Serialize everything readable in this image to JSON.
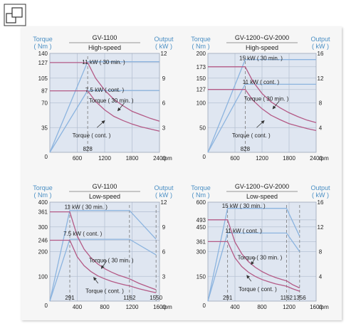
{
  "chart_data": [
    {
      "type": "line",
      "title": "GV-1100",
      "subtitle": "High-speed",
      "ylabel_left": [
        "Torque",
        "( Nm )"
      ],
      "ylabel_right": [
        "Output",
        "( kW )"
      ],
      "xunit": "rpm",
      "xlim": [
        0,
        2400
      ],
      "ylim_left": [
        0,
        140
      ],
      "ylim_right": [
        0,
        12
      ],
      "x_ticks": [
        0,
        600,
        1200,
        1800,
        2400
      ],
      "left_ticks": [
        140,
        127,
        105,
        87,
        70,
        35
      ],
      "right_ticks": [
        12,
        9,
        6,
        3
      ],
      "vlines": [
        828
      ],
      "vline_labels": [
        "828"
      ],
      "series": [
        {
          "name": "11 kW ( 30 min. )",
          "axis": "right",
          "x": [
            0,
            828,
            2400
          ],
          "y": [
            0,
            11,
            11
          ]
        },
        {
          "name": "7.5 kW ( cont. )",
          "axis": "right",
          "x": [
            0,
            828,
            2400
          ],
          "y": [
            0,
            7.5,
            7.5
          ]
        },
        {
          "name": "Torque ( 30 min. )",
          "axis": "left",
          "x": [
            0,
            828,
            1000,
            1200,
            1400,
            1600,
            1800,
            2000,
            2200,
            2400
          ],
          "y": [
            127,
            127,
            105,
            88,
            75,
            66,
            58,
            53,
            48,
            44
          ]
        },
        {
          "name": "Torque ( cont. )",
          "axis": "left",
          "x": [
            0,
            828,
            1000,
            1200,
            1400,
            1600,
            1800,
            2000,
            2200,
            2400
          ],
          "y": [
            87,
            87,
            72,
            60,
            51,
            45,
            40,
            36,
            33,
            30
          ]
        }
      ],
      "annotations": [
        "11 kW ( 30 min. )",
        "7.5 kW ( cont. )",
        "Torque ( 30 min. )",
        "Torque ( cont. )"
      ]
    },
    {
      "type": "line",
      "title": "GV-1200~GV-2000",
      "subtitle": "High-speed",
      "ylabel_left": [
        "Torque",
        "( Nm )"
      ],
      "ylabel_right": [
        "Output",
        "( kW )"
      ],
      "xunit": "rpm",
      "xlim": [
        0,
        2400
      ],
      "ylim_left": [
        0,
        200
      ],
      "ylim_right": [
        0,
        16
      ],
      "x_ticks": [
        0,
        600,
        1200,
        1800,
        2400
      ],
      "left_ticks": [
        200,
        173,
        150,
        127,
        100,
        50
      ],
      "right_ticks": [
        16,
        12,
        8,
        4
      ],
      "vlines": [
        828
      ],
      "vline_labels": [
        "828"
      ],
      "series": [
        {
          "name": "15 kW ( 30 min. )",
          "axis": "right",
          "x": [
            0,
            828,
            2400
          ],
          "y": [
            0,
            15,
            15
          ]
        },
        {
          "name": "11 kW ( cont. )",
          "axis": "right",
          "x": [
            0,
            828,
            2400
          ],
          "y": [
            0,
            11,
            11
          ]
        },
        {
          "name": "Torque ( 30 min. )",
          "axis": "left",
          "x": [
            0,
            828,
            1000,
            1200,
            1400,
            1600,
            1800,
            2000,
            2200,
            2400
          ],
          "y": [
            173,
            173,
            143,
            119,
            102,
            90,
            80,
            72,
            65,
            60
          ]
        },
        {
          "name": "Torque ( cont. )",
          "axis": "left",
          "x": [
            0,
            828,
            1000,
            1200,
            1400,
            1600,
            1800,
            2000,
            2200,
            2400
          ],
          "y": [
            127,
            127,
            105,
            88,
            75,
            66,
            58,
            53,
            48,
            44
          ]
        }
      ],
      "annotations": [
        "15 kW ( 30 min. )",
        "11 kW ( cont. )",
        "Torque ( 30 min. )",
        "Torque ( cont. )"
      ]
    },
    {
      "type": "line",
      "title": "GV-1100",
      "subtitle": "Low-speed",
      "ylabel_left": [
        "Torque",
        "( Nm )"
      ],
      "ylabel_right": [
        "Output",
        "( kW )"
      ],
      "xunit": "rpm",
      "xlim": [
        0,
        1600
      ],
      "ylim_left": [
        0,
        400
      ],
      "ylim_right": [
        0,
        12
      ],
      "x_ticks": [
        0,
        400,
        800,
        1200,
        1600
      ],
      "left_ticks": [
        400,
        361,
        300,
        246,
        200,
        100
      ],
      "right_ticks": [
        12,
        9,
        6,
        3
      ],
      "vlines": [
        291,
        1162,
        1550
      ],
      "vline_labels": [
        "291",
        "1162",
        "1550"
      ],
      "series": [
        {
          "name": "11 kW ( 30 min. )",
          "axis": "right",
          "x": [
            0,
            291,
            1162,
            1550
          ],
          "y": [
            0,
            11,
            11,
            7.5
          ]
        },
        {
          "name": "7.5 kW ( cont. )",
          "axis": "right",
          "x": [
            0,
            291,
            1162,
            1550
          ],
          "y": [
            0,
            7.5,
            7.5,
            5.6
          ]
        },
        {
          "name": "Torque ( 30 min. )",
          "axis": "left",
          "x": [
            0,
            291,
            400,
            500,
            600,
            700,
            800,
            900,
            1000,
            1100,
            1162,
            1300,
            1450,
            1550
          ],
          "y": [
            361,
            361,
            263,
            210,
            175,
            150,
            131,
            117,
            105,
            96,
            90,
            72,
            56,
            46
          ]
        },
        {
          "name": "Torque ( cont. )",
          "axis": "left",
          "x": [
            0,
            291,
            400,
            500,
            600,
            700,
            800,
            900,
            1000,
            1100,
            1162,
            1300,
            1450,
            1550
          ],
          "y": [
            246,
            246,
            179,
            143,
            119,
            102,
            90,
            80,
            72,
            65,
            62,
            50,
            40,
            34
          ]
        }
      ],
      "annotations": [
        "11 kW ( 30 min. )",
        "7.5 kW ( cont. )",
        "Torque ( 30 min. )",
        "Torque ( cont. )"
      ]
    },
    {
      "type": "line",
      "title": "GV-1200~GV-2000",
      "subtitle": "Low-speed",
      "ylabel_left": [
        "Torque",
        "( Nm )"
      ],
      "ylabel_right": [
        "Output",
        "( kW )"
      ],
      "xunit": "rpm",
      "xlim": [
        0,
        1600
      ],
      "ylim_left": [
        0,
        600
      ],
      "ylim_right": [
        0,
        16
      ],
      "x_ticks": [
        0,
        400,
        800,
        1200,
        1600
      ],
      "left_ticks": [
        600,
        493,
        450,
        361,
        300,
        150
      ],
      "right_ticks": [
        16,
        12,
        8,
        4
      ],
      "vlines": [
        291,
        1162,
        1356
      ],
      "vline_labels": [
        "291",
        "1162",
        "1356"
      ],
      "series": [
        {
          "name": "15 kW ( 30 min. )",
          "axis": "right",
          "x": [
            0,
            291,
            1162,
            1356
          ],
          "y": [
            0,
            15,
            15,
            10.5
          ]
        },
        {
          "name": "11 kW ( cont. )",
          "axis": "right",
          "x": [
            0,
            291,
            1162,
            1356
          ],
          "y": [
            0,
            11,
            11,
            8
          ]
        },
        {
          "name": "Torque ( 30 min. )",
          "axis": "left",
          "x": [
            0,
            291,
            400,
            500,
            600,
            700,
            800,
            900,
            1000,
            1100,
            1162,
            1250,
            1356
          ],
          "y": [
            493,
            493,
            358,
            287,
            239,
            205,
            179,
            159,
            143,
            130,
            123,
            100,
            80
          ]
        },
        {
          "name": "Torque ( cont. )",
          "axis": "left",
          "x": [
            0,
            291,
            400,
            500,
            600,
            700,
            800,
            900,
            1000,
            1100,
            1162,
            1250,
            1356
          ],
          "y": [
            361,
            361,
            263,
            210,
            175,
            150,
            131,
            117,
            105,
            96,
            90,
            75,
            60
          ]
        }
      ],
      "annotations": [
        "15 kW ( 30 min. )",
        "11 kW ( cont. )",
        "Torque ( 30 min. )",
        "Torque ( cont. )"
      ]
    }
  ],
  "colors": {
    "axis_label": "#4a8fc4",
    "plot_bg": "#dfe6f1",
    "grid": "#b7c2d4",
    "output_line": "#8cb4df",
    "torque_line": "#b45a86",
    "tick_text": "#222222",
    "title_rule": "#777777"
  }
}
